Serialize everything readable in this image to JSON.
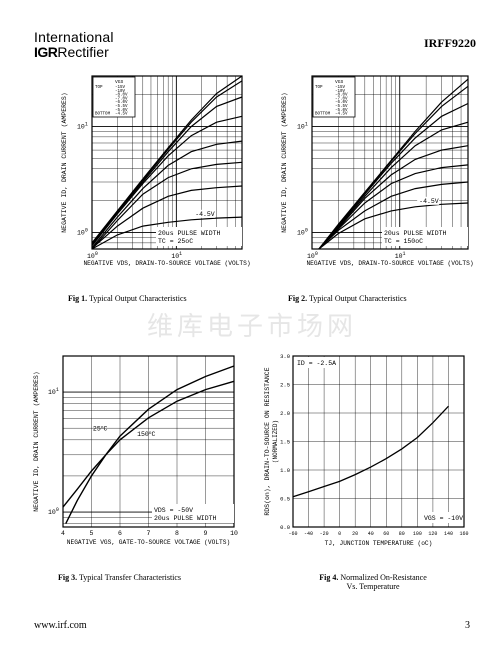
{
  "header": {
    "logo_line1": "International",
    "logo_brand": "IGR",
    "logo_line2": "Rectifier",
    "part_number": "IRFF9220"
  },
  "watermark": "维库电子市场网",
  "footer": {
    "website": "www.irf.com",
    "page_number": "3"
  },
  "figures": [
    {
      "caption_num": "Fig 1.",
      "caption_text": "Typical Output Characteristics"
    },
    {
      "caption_num": "Fig 2.",
      "caption_text": "Typical Output Characteristics"
    },
    {
      "caption_num": "Fig 3.",
      "caption_text": "Typical Transfer Characteristics"
    },
    {
      "caption_num": "Fig 4.",
      "caption_text": "Normalized On-Resistance",
      "caption_text2": "Vs. Temperature"
    }
  ],
  "chart_data": [
    {
      "type": "line",
      "xlabel": "NEGATIVE VDS, DRAIN-TO-SOURCE VOLTAGE (VOLTS)",
      "ylabel": "NEGATIVE ID, DRAIN CURRENT (AMPERES)",
      "x_scale": "log",
      "y_scale": "log",
      "xlim": [
        1,
        60
      ],
      "ylim": [
        0.7,
        30
      ],
      "x_tick_labels": [
        "10^0",
        "10^1"
      ],
      "y_tick_labels": [
        "10^0",
        "10^1"
      ],
      "legend_header": "VGS",
      "legend_rows": [
        [
          "TOP",
          "-15V"
        ],
        [
          "",
          "-10V"
        ],
        [
          "",
          "-8.0V"
        ],
        [
          "",
          "-7.0V"
        ],
        [
          "",
          "-6.0V"
        ],
        [
          "",
          "-5.5V"
        ],
        [
          "",
          "-5.0V"
        ],
        [
          "BOTTOM",
          "-4.5V"
        ]
      ],
      "annotation_curve": "-4.5V",
      "annotations": [
        "20us PULSE WIDTH",
        "TC = 25oC"
      ],
      "series": [
        {
          "name": "-15V",
          "x": [
            1,
            2,
            4,
            8,
            15,
            30,
            60
          ],
          "y": [
            0.8,
            1.6,
            3.2,
            6.3,
            11.5,
            20.5,
            30
          ]
        },
        {
          "name": "-10V",
          "x": [
            1,
            2,
            4,
            8,
            15,
            30,
            60
          ],
          "y": [
            0.79,
            1.58,
            3.1,
            6.1,
            11,
            19,
            27
          ]
        },
        {
          "name": "-8.0V",
          "x": [
            1,
            2,
            4,
            8,
            15,
            30,
            60
          ],
          "y": [
            0.77,
            1.55,
            3.0,
            5.8,
            10,
            15.5,
            19
          ]
        },
        {
          "name": "-7.0V",
          "x": [
            1,
            2,
            4,
            8,
            15,
            30,
            60
          ],
          "y": [
            0.75,
            1.5,
            2.9,
            5.3,
            8.2,
            11,
            12.5
          ]
        },
        {
          "name": "-6.0V",
          "x": [
            1,
            2,
            4,
            8,
            15,
            30,
            60
          ],
          "y": [
            0.72,
            1.4,
            2.6,
            4.3,
            5.8,
            6.8,
            7.3
          ]
        },
        {
          "name": "-5.5V",
          "x": [
            1,
            2,
            4,
            8,
            15,
            30,
            60
          ],
          "y": [
            0.7,
            1.3,
            2.3,
            3.3,
            4.0,
            4.4,
            4.6
          ]
        },
        {
          "name": "-5.0V",
          "x": [
            1,
            2,
            4,
            8,
            15,
            30,
            60
          ],
          "y": [
            0.71,
            1.15,
            1.7,
            2.2,
            2.5,
            2.65,
            2.75
          ]
        },
        {
          "name": "-4.5V",
          "x": [
            1,
            2,
            4,
            8,
            15,
            30,
            60
          ],
          "y": [
            0.7,
            0.95,
            1.15,
            1.25,
            1.32,
            1.37,
            1.4
          ]
        }
      ]
    },
    {
      "type": "line",
      "xlabel": "NEGATIVE VDS, DRAIN-TO-SOURCE VOLTAGE (VOLTS)",
      "ylabel": "NEGATIVE ID, DRAIN CURRENT (AMPERES)",
      "x_scale": "log",
      "y_scale": "log",
      "xlim": [
        1,
        60
      ],
      "ylim": [
        0.7,
        30
      ],
      "x_tick_labels": [
        "10^0",
        "10^1"
      ],
      "y_tick_labels": [
        "10^0",
        "10^1"
      ],
      "legend_header": "VGS",
      "legend_rows": [
        [
          "TOP",
          "-15V"
        ],
        [
          "",
          "-10V"
        ],
        [
          "",
          "-8.0V"
        ],
        [
          "",
          "-7.0V"
        ],
        [
          "",
          "-6.0V"
        ],
        [
          "",
          "-5.5V"
        ],
        [
          "",
          "-5.0V"
        ],
        [
          "BOTTOM",
          "-4.5V"
        ]
      ],
      "annotation_curve": "-4.5V",
      "annotations": [
        "20us PULSE WIDTH",
        "TC = 150oC"
      ],
      "series": [
        {
          "name": "-15V",
          "x": [
            1.2,
            2,
            4,
            8,
            15,
            30,
            60
          ],
          "y": [
            0.7,
            1.2,
            2.4,
            4.8,
            9,
            17,
            28
          ]
        },
        {
          "name": "-10V",
          "x": [
            1.2,
            2,
            4,
            8,
            15,
            30,
            60
          ],
          "y": [
            0.7,
            1.18,
            2.35,
            4.7,
            8.6,
            15.5,
            24
          ]
        },
        {
          "name": "-8.0V",
          "x": [
            1.2,
            2,
            4,
            8,
            15,
            30,
            60
          ],
          "y": [
            0.7,
            1.15,
            2.3,
            4.5,
            7.8,
            12.5,
            16.5
          ]
        },
        {
          "name": "-7.0V",
          "x": [
            1.2,
            2,
            4,
            8,
            15,
            30,
            60
          ],
          "y": [
            0.7,
            1.13,
            2.2,
            4.1,
            6.6,
            9.3,
            11
          ]
        },
        {
          "name": "-6.0V",
          "x": [
            1.2,
            2,
            4,
            8,
            15,
            30,
            60
          ],
          "y": [
            0.7,
            1.1,
            2.1,
            3.5,
            4.9,
            6.0,
            6.6
          ]
        },
        {
          "name": "-5.5V",
          "x": [
            1.2,
            2,
            4,
            8,
            15,
            30,
            60
          ],
          "y": [
            0.7,
            1.08,
            1.9,
            2.9,
            3.6,
            4.1,
            4.35
          ]
        },
        {
          "name": "-5.0V",
          "x": [
            1.2,
            2,
            4,
            8,
            15,
            30,
            60
          ],
          "y": [
            0.7,
            1.05,
            1.6,
            2.2,
            2.6,
            2.85,
            3.0
          ]
        },
        {
          "name": "-4.5V",
          "x": [
            1.2,
            2,
            4,
            8,
            15,
            30,
            60
          ],
          "y": [
            0.7,
            0.98,
            1.35,
            1.6,
            1.75,
            1.85,
            1.9
          ]
        }
      ]
    },
    {
      "type": "line",
      "xlabel": "NEGATIVE VGS, GATE-TO-SOURCE VOLTAGE (VOLTS)",
      "ylabel": "NEGATIVE ID, DRAIN CURRENT (AMPERES)",
      "x_scale": "linear",
      "y_scale": "log",
      "xlim": [
        4,
        10
      ],
      "ylim": [
        0.75,
        20
      ],
      "x_ticks": [
        4,
        5,
        6,
        7,
        8,
        9,
        10
      ],
      "y_tick_labels": [
        "10^0",
        "10^1"
      ],
      "annotations": [
        "VDS = -50V",
        "20us PULSE WIDTH"
      ],
      "series": [
        {
          "name": "25oC",
          "x": [
            4.1,
            4.5,
            5,
            5.5,
            6,
            7,
            8,
            9,
            10
          ],
          "y": [
            0.8,
            1.25,
            2.0,
            3.0,
            4.3,
            7.2,
            10.5,
            13.5,
            16.5
          ]
        },
        {
          "name": "150oC",
          "x": [
            4,
            4.5,
            5,
            5.5,
            6,
            7,
            8,
            9,
            10
          ],
          "y": [
            1.1,
            1.55,
            2.2,
            3.0,
            4.0,
            6.1,
            8.4,
            10.5,
            12.3
          ]
        }
      ]
    },
    {
      "type": "line",
      "xlabel": "TJ, JUNCTION TEMPERATURE (oC)",
      "ylabel": "RDS(on), DRAIN-TO-SOURCE ON RESISTANCE (NORMALIZED)",
      "x_scale": "linear",
      "y_scale": "linear",
      "xlim": [
        -60,
        160
      ],
      "ylim": [
        0.0,
        3.0
      ],
      "x_ticks": [
        -60,
        -40,
        -20,
        0,
        20,
        40,
        60,
        80,
        100,
        120,
        140,
        160
      ],
      "y_ticks": [
        0.0,
        0.5,
        1.0,
        1.5,
        2.0,
        2.5,
        3.0
      ],
      "annotations": [
        "ID = -2.5A",
        "VGS = -10V"
      ],
      "series": [
        {
          "name": "RDS(on)",
          "x": [
            -60,
            -40,
            -20,
            0,
            20,
            40,
            60,
            80,
            100,
            120,
            140
          ],
          "y": [
            0.53,
            0.62,
            0.71,
            0.8,
            0.92,
            1.05,
            1.2,
            1.37,
            1.57,
            1.83,
            2.12
          ]
        }
      ]
    }
  ]
}
